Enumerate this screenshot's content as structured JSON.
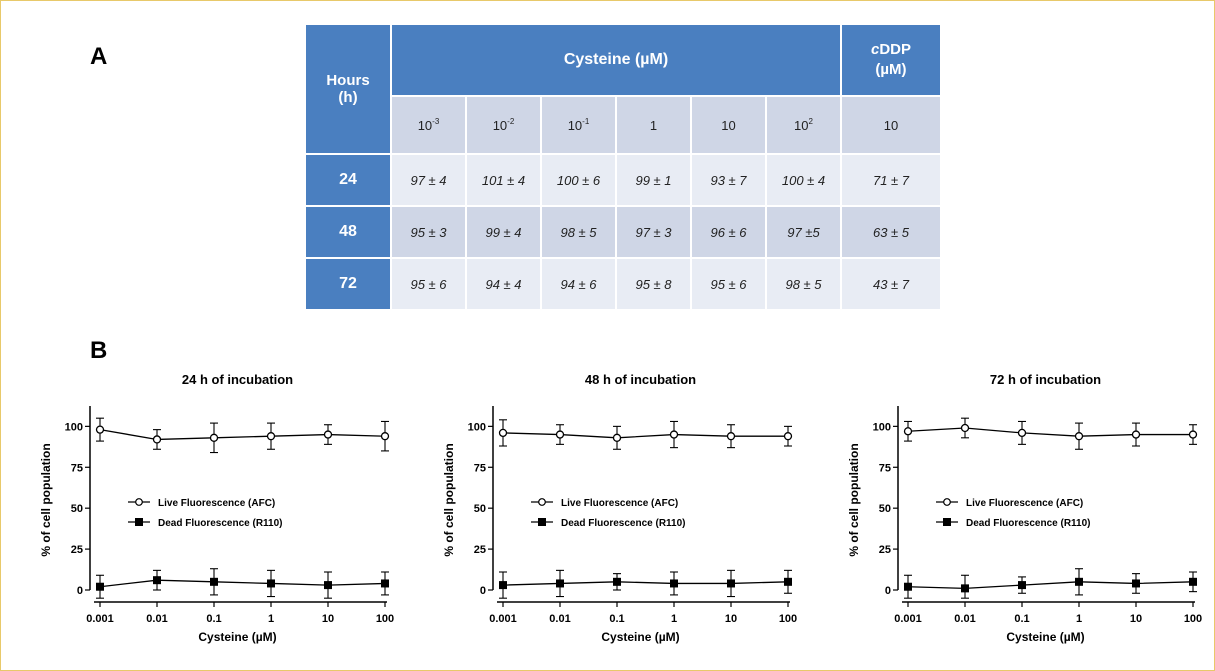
{
  "panel_a": {
    "label": "A"
  },
  "panel_b": {
    "label": "B"
  },
  "table": {
    "header_hours": "Hours",
    "header_hours_unit": "(h)",
    "header_cysteine": "Cysteine (µM)",
    "header_cddp_italic": "c",
    "header_cddp_rest": "DDP",
    "header_cddp_unit": "(µM)",
    "concentrations": [
      {
        "base": "10",
        "exp": "-3"
      },
      {
        "base": "10",
        "exp": "-2"
      },
      {
        "base": "10",
        "exp": "-1"
      },
      {
        "base": "1",
        "exp": ""
      },
      {
        "base": "10",
        "exp": ""
      },
      {
        "base": "10",
        "exp": "2"
      }
    ],
    "cddp_concentration": "10",
    "rows": [
      {
        "hours": "24",
        "values": [
          "97 ± 4",
          "101 ± 4",
          "100 ± 6",
          "99 ± 1",
          "93 ± 7",
          "100 ± 4"
        ],
        "cddp": "71 ± 7"
      },
      {
        "hours": "48",
        "values": [
          "95 ± 3",
          "99 ± 4",
          "98 ± 5",
          "97 ± 3",
          "96 ± 6",
          "97 ±5"
        ],
        "cddp": "63 ± 5"
      },
      {
        "hours": "72",
        "values": [
          "95 ± 6",
          "94 ± 4",
          "94 ± 6",
          "95 ± 8",
          "95 ± 6",
          "98 ± 5"
        ],
        "cddp": "43 ± 7"
      }
    ]
  },
  "chart_data": [
    {
      "type": "line",
      "title": "24 h of incubation",
      "xlabel": "Cysteine (µM)",
      "ylabel": "% of cell population",
      "x_scale": "log",
      "x": [
        0.001,
        0.01,
        0.1,
        1,
        10,
        100
      ],
      "x_tick_labels": [
        "0.001",
        "0.01",
        "0.1",
        "1",
        "10",
        "100"
      ],
      "y_ticks": [
        0,
        25,
        50,
        75,
        100
      ],
      "ylim": [
        0,
        110
      ],
      "legend_position": "center",
      "series": [
        {
          "name": "Live Fluorescence (AFC)",
          "marker": "open-circle",
          "values": [
            98,
            92,
            93,
            94,
            95,
            94
          ],
          "errors": [
            7,
            6,
            9,
            8,
            6,
            9
          ]
        },
        {
          "name": "Dead Fluorescence (R110)",
          "marker": "filled-square",
          "values": [
            2,
            6,
            5,
            4,
            3,
            4
          ],
          "errors": [
            7,
            6,
            8,
            8,
            8,
            7
          ]
        }
      ]
    },
    {
      "type": "line",
      "title": "48 h of incubation",
      "xlabel": "Cysteine (µM)",
      "ylabel": "% of cell population",
      "x_scale": "log",
      "x": [
        0.001,
        0.01,
        0.1,
        1,
        10,
        100
      ],
      "x_tick_labels": [
        "0.001",
        "0.01",
        "0.1",
        "1",
        "10",
        "100"
      ],
      "y_ticks": [
        0,
        25,
        50,
        75,
        100
      ],
      "ylim": [
        0,
        110
      ],
      "legend_position": "center",
      "series": [
        {
          "name": "Live Fluorescence (AFC)",
          "marker": "open-circle",
          "values": [
            96,
            95,
            93,
            95,
            94,
            94
          ],
          "errors": [
            8,
            6,
            7,
            8,
            7,
            6
          ]
        },
        {
          "name": "Dead Fluorescence (R110)",
          "marker": "filled-square",
          "values": [
            3,
            4,
            5,
            4,
            4,
            5
          ],
          "errors": [
            8,
            8,
            5,
            7,
            8,
            7
          ]
        }
      ]
    },
    {
      "type": "line",
      "title": "72 h of incubation",
      "xlabel": "Cysteine (µM)",
      "ylabel": "% of cell population",
      "x_scale": "log",
      "x": [
        0.001,
        0.01,
        0.1,
        1,
        10,
        100
      ],
      "x_tick_labels": [
        "0.001",
        "0.01",
        "0.1",
        "1",
        "10",
        "100"
      ],
      "y_ticks": [
        0,
        25,
        50,
        75,
        100
      ],
      "ylim": [
        0,
        110
      ],
      "legend_position": "center",
      "series": [
        {
          "name": "Live Fluorescence (AFC)",
          "marker": "open-circle",
          "values": [
            97,
            99,
            96,
            94,
            95,
            95
          ],
          "errors": [
            6,
            6,
            7,
            8,
            7,
            6
          ]
        },
        {
          "name": "Dead Fluorescence (R110)",
          "marker": "filled-square",
          "values": [
            2,
            1,
            3,
            5,
            4,
            5
          ],
          "errors": [
            7,
            8,
            5,
            8,
            6,
            6
          ]
        }
      ]
    }
  ]
}
